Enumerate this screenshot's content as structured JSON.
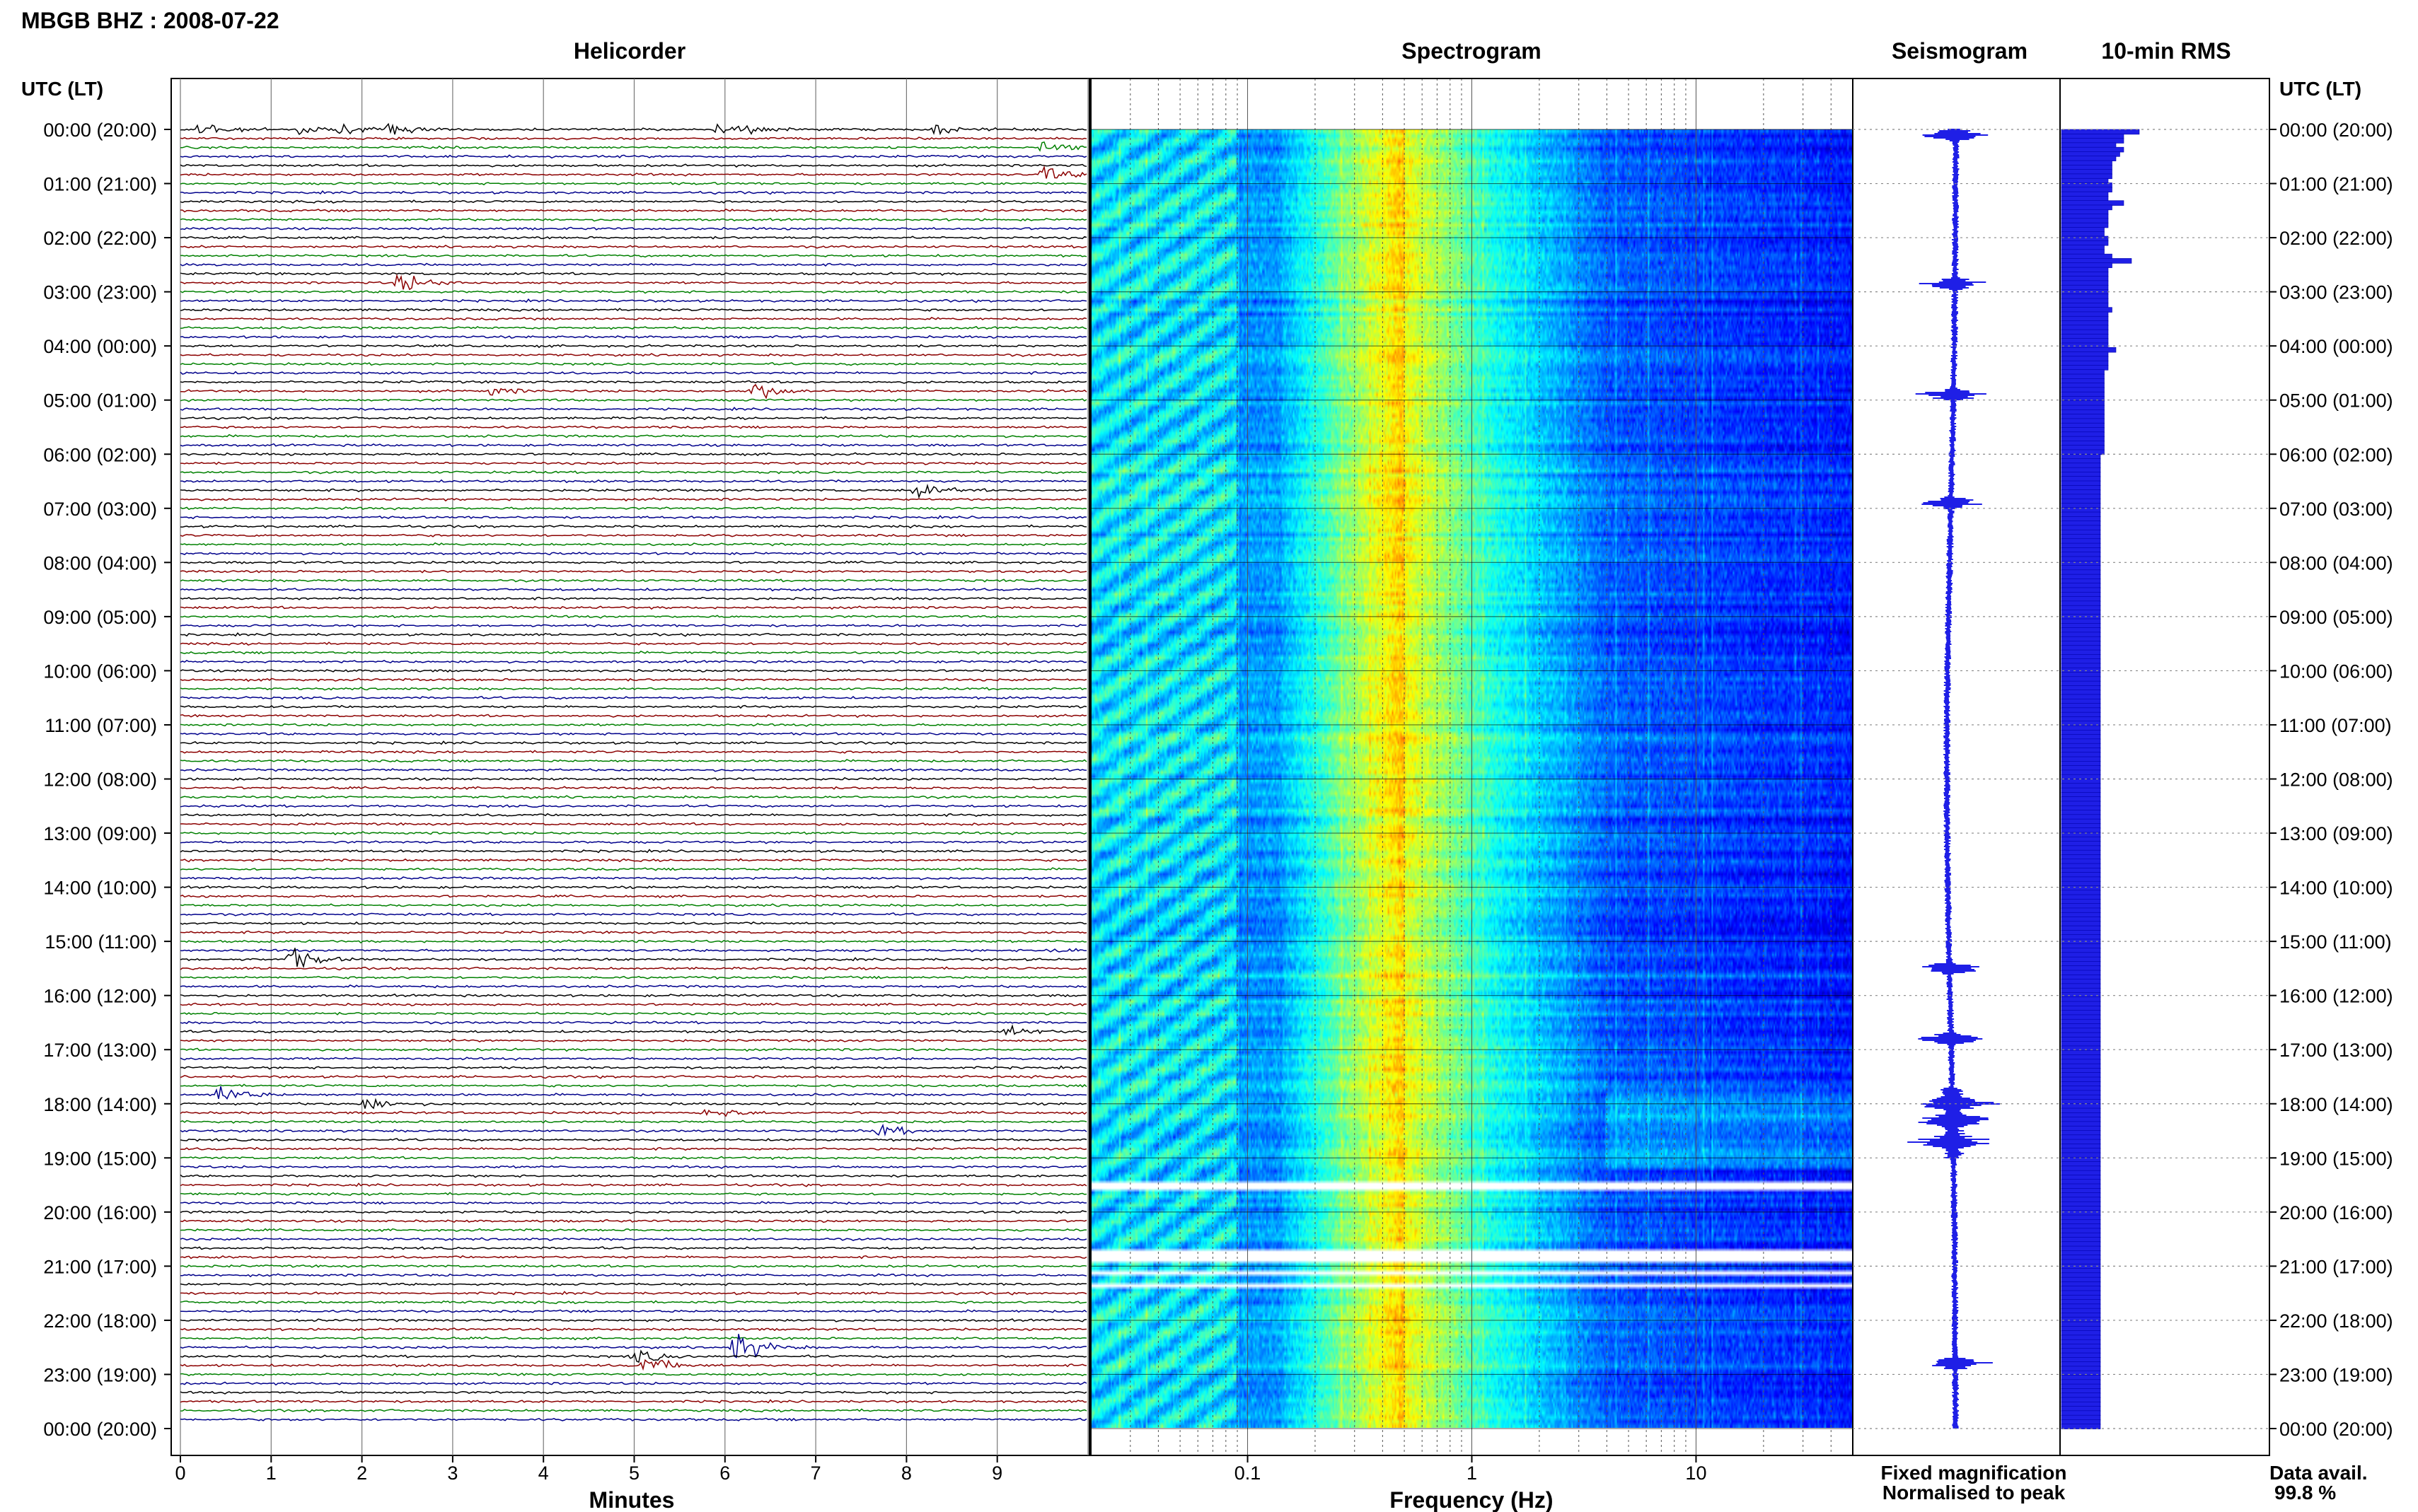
{
  "page": {
    "title": "MBGB BHZ : 2008-07-22",
    "panel_titles": {
      "helicorder": "Helicorder",
      "spectrogram": "Spectrogram",
      "seismogram": "Seismogram",
      "rms": "10-min RMS"
    },
    "left_axis_label": "UTC (LT)",
    "right_axis_label": "UTC (LT)",
    "legend": {
      "fixed": "Fixed magnification",
      "normalised": "Normalised to peak",
      "fixed_color": "#1f1fe6",
      "normalised_color": "#e61f1f"
    },
    "data_avail_label": "Data avail.",
    "data_avail_value": "99.8 %"
  },
  "chart_data": {
    "type": "line",
    "time_labels": [
      "00:00 (20:00)",
      "01:00 (21:00)",
      "02:00 (22:00)",
      "03:00 (23:00)",
      "04:00 (00:00)",
      "05:00 (01:00)",
      "06:00 (02:00)",
      "07:00 (03:00)",
      "08:00 (04:00)",
      "09:00 (05:00)",
      "10:00 (06:00)",
      "11:00 (07:00)",
      "12:00 (08:00)",
      "13:00 (09:00)",
      "14:00 (10:00)",
      "15:00 (11:00)",
      "16:00 (12:00)",
      "17:00 (13:00)",
      "18:00 (14:00)",
      "19:00 (15:00)",
      "20:00 (16:00)",
      "21:00 (17:00)",
      "22:00 (18:00)",
      "23:00 (19:00)",
      "00:00 (20:00)"
    ],
    "helicorder": {
      "xlabel": "Minutes",
      "xlim": [
        0,
        10
      ],
      "xticks": [
        "0",
        "1",
        "2",
        "3",
        "4",
        "5",
        "6",
        "7",
        "8",
        "9"
      ],
      "lines_per_hour": 6,
      "trace_colors": [
        "#000000",
        "#8b0000",
        "#008000",
        "#00008b"
      ],
      "events": [
        {
          "hour": 0.0,
          "minute": 0.2,
          "amp": 1.6
        },
        {
          "hour": 0.0,
          "minute": 1.3,
          "amp": 1.0
        },
        {
          "hour": 0.0,
          "minute": 1.7,
          "amp": 1.1
        },
        {
          "hour": 0.0,
          "minute": 2.3,
          "amp": 1.2
        },
        {
          "hour": 0.0,
          "minute": 5.9,
          "amp": 1.0
        },
        {
          "hour": 0.0,
          "minute": 6.2,
          "amp": 0.9
        },
        {
          "hour": 0.0,
          "minute": 8.3,
          "amp": 0.9
        },
        {
          "hour": 0.33,
          "minute": 9.5,
          "amp": 1.4
        },
        {
          "hour": 0.83,
          "minute": 9.5,
          "amp": 1.6
        },
        {
          "hour": 2.83,
          "minute": 2.4,
          "amp": 2.2
        },
        {
          "hour": 4.83,
          "minute": 6.3,
          "amp": 2.0
        },
        {
          "hour": 4.83,
          "minute": 3.4,
          "amp": 0.9
        },
        {
          "hour": 6.67,
          "minute": 8.1,
          "amp": 1.4
        },
        {
          "hour": 15.33,
          "minute": 1.2,
          "amp": 2.4
        },
        {
          "hour": 15.17,
          "minute": 9.5,
          "amp": 0.9
        },
        {
          "hour": 16.67,
          "minute": 9.1,
          "amp": 1.2
        },
        {
          "hour": 17.83,
          "minute": 0.4,
          "amp": 2.2
        },
        {
          "hour": 18.0,
          "minute": 2.0,
          "amp": 1.6
        },
        {
          "hour": 18.17,
          "minute": 5.8,
          "amp": 1.4
        },
        {
          "hour": 18.5,
          "minute": 7.7,
          "amp": 1.3
        },
        {
          "hour": 22.5,
          "minute": 6.1,
          "amp": 3.4
        },
        {
          "hour": 22.67,
          "minute": 5.0,
          "amp": 1.6
        },
        {
          "hour": 22.83,
          "minute": 5.1,
          "amp": 1.8
        }
      ]
    },
    "spectrogram": {
      "xlabel": "Frequency (Hz)",
      "xscale": "log",
      "xlim": [
        0.02,
        50
      ],
      "xticks": [
        "0.1",
        "1",
        "10"
      ],
      "gaps_hours": [
        19.5,
        20.75,
        20.82,
        21.1,
        21.35
      ]
    },
    "seismogram": {
      "color": "#1f1fe6",
      "spikes_hours": [
        0.1,
        2.85,
        4.9,
        6.9,
        15.5,
        16.8,
        18.0,
        18.3,
        18.7,
        22.8
      ]
    },
    "rms": {
      "color": "#1f1fe6",
      "values": [
        2.0,
        1.6,
        1.6,
        1.4,
        1.6,
        1.5,
        1.4,
        1.3,
        1.3,
        1.3,
        1.3,
        1.2,
        1.3,
        1.3,
        1.2,
        1.2,
        1.6,
        1.3,
        1.2,
        1.2,
        1.2,
        1.2,
        1.1,
        1.1,
        1.2,
        1.2,
        1.1,
        1.1,
        1.3,
        1.8,
        1.3,
        1.2,
        1.2,
        1.2,
        1.2,
        1.2,
        1.2,
        1.2,
        1.2,
        1.2,
        1.3,
        1.2,
        1.2,
        1.2,
        1.2,
        1.2,
        1.2,
        1.2,
        1.2,
        1.4,
        1.2,
        1.2,
        1.2,
        1.2,
        1.1,
        1.1,
        1.1,
        1.1,
        1.1,
        1.1,
        1.1,
        1.1,
        1.1,
        1.1,
        1.1,
        1.1,
        1.1,
        1.1,
        1.1,
        1.1,
        1.1,
        1.1,
        1.1,
        1.0,
        1.0,
        1.0,
        1.0,
        1.0,
        1.0,
        1.0,
        1.0,
        1.0,
        1.0,
        1.0,
        1.0,
        1.0,
        1.0,
        1.0,
        1.0,
        1.0,
        1.0,
        1.0,
        1.0,
        1.0,
        1.0,
        1.0,
        1.0,
        1.0,
        1.0,
        1.0,
        1.0,
        1.0,
        1.0,
        1.0,
        1.0,
        1.0,
        1.0,
        1.0,
        1.0,
        1.0,
        1.0,
        1.0,
        1.0,
        1.0,
        1.0,
        1.0,
        1.0,
        1.0,
        1.0,
        1.0,
        1.0,
        1.0,
        1.0,
        1.0,
        1.0,
        1.0,
        1.0,
        1.0,
        1.0,
        1.0,
        1.0,
        1.0,
        1.0,
        1.0,
        1.0,
        1.0,
        1.0,
        1.0,
        1.0,
        1.0,
        1.0,
        1.0,
        1.0,
        1.0,
        1.0,
        1.0,
        1.0,
        1.0,
        1.0,
        1.0,
        1.0,
        1.0,
        1.0,
        1.0,
        1.0,
        1.0,
        1.0,
        1.0,
        1.0,
        1.0,
        1.0,
        1.0,
        1.0,
        1.0,
        1.0,
        1.0,
        1.0,
        1.0,
        1.0,
        1.0,
        1.0,
        1.0,
        1.0,
        1.0,
        1.0,
        1.0,
        1.0,
        1.0,
        1.0,
        1.0,
        1.0,
        1.0,
        1.0,
        1.0,
        1.0,
        1.0,
        1.0,
        1.0,
        1.0,
        1.0,
        1.0,
        1.0,
        1.0,
        1.0,
        1.0,
        1.0,
        1.0,
        1.0,
        1.0,
        1.0,
        1.0,
        1.0,
        1.0,
        1.0,
        1.0,
        1.0,
        1.0,
        1.0,
        1.0,
        1.0,
        1.0,
        1.0,
        1.0,
        1.0,
        1.0,
        1.0,
        1.0,
        1.0,
        1.0,
        1.0,
        1.0,
        1.0,
        1.0,
        1.0,
        1.0,
        1.0,
        1.0,
        1.0,
        1.0,
        1.0,
        1.0,
        1.0,
        1.0,
        1.0,
        1.0,
        1.0,
        1.0,
        1.0,
        1.0,
        1.0,
        1.0,
        1.0,
        1.0,
        1.0,
        1.0,
        1.0,
        1.0,
        1.0,
        1.0,
        1.0,
        1.0,
        1.0,
        1.0,
        1.0,
        1.0,
        1.0,
        1.0,
        1.0,
        1.0,
        1.0,
        1.0,
        1.0,
        1.0,
        1.0,
        1.0,
        1.0,
        1.0,
        1.0,
        1.0,
        1.0,
        1.0,
        1.0,
        1.0,
        1.0,
        1.0,
        1.0,
        1.0,
        1.0,
        1.0,
        1.0,
        1.0,
        1.0,
        1.0,
        1.0,
        1.0,
        1.0,
        1.0,
        1.0,
        1.0,
        1.0,
        1.0,
        1.0
      ]
    }
  }
}
